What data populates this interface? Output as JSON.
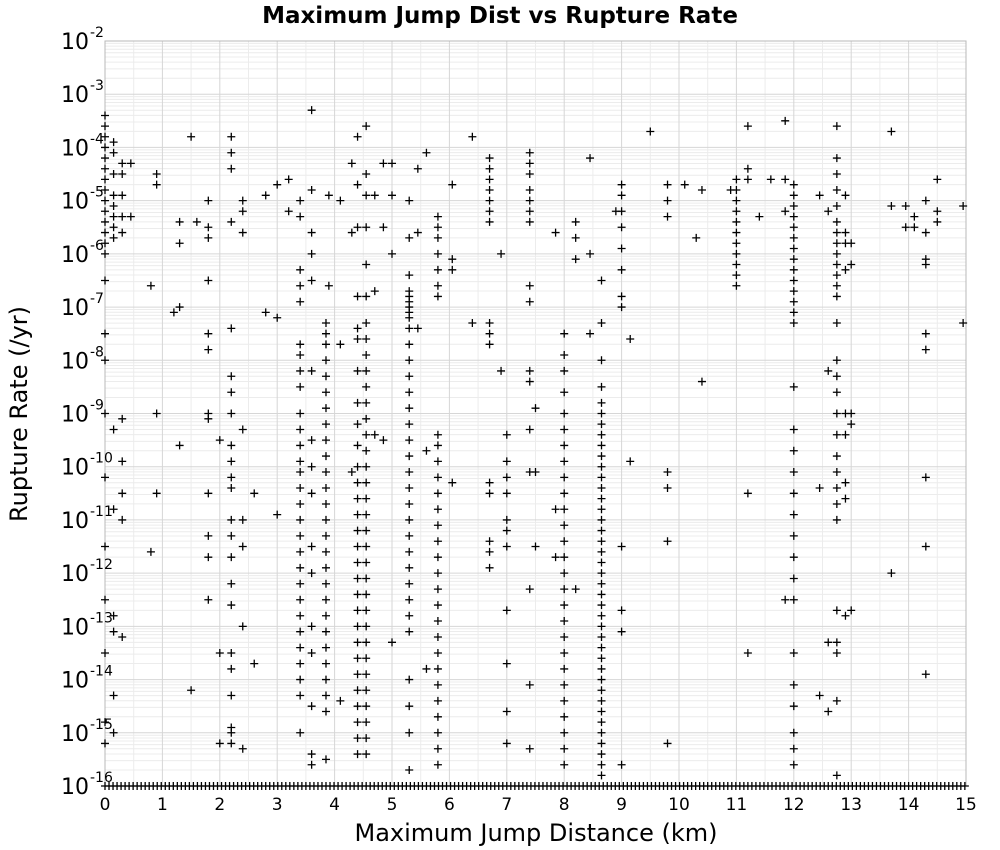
{
  "chart_data": {
    "type": "scatter",
    "title": "Maximum Jump Dist vs Rupture Rate",
    "xlabel": "Maximum Jump Distance (km)",
    "ylabel": "Rupture Rate (/yr)",
    "xlim": [
      0,
      15
    ],
    "ylim": [
      1e-16,
      0.01
    ],
    "yscale": "log",
    "grid": true,
    "marker": "plus",
    "marker_color": "#000000",
    "x_ticks": [
      "0",
      "1",
      "2",
      "3",
      "4",
      "5",
      "6",
      "7",
      "8",
      "9",
      "10",
      "11",
      "12",
      "13",
      "14",
      "15"
    ],
    "y_ticks": [
      {
        "base": "10",
        "exp": "-2"
      },
      {
        "base": "10",
        "exp": "-3"
      },
      {
        "base": "10",
        "exp": "-4"
      },
      {
        "base": "10",
        "exp": "-5"
      },
      {
        "base": "10",
        "exp": "-6"
      },
      {
        "base": "10",
        "exp": "-7"
      },
      {
        "base": "10",
        "exp": "-8"
      },
      {
        "base": "10",
        "exp": "-9"
      },
      {
        "base": "10",
        "exp": "-10"
      },
      {
        "base": "10",
        "exp": "-11"
      },
      {
        "base": "10",
        "exp": "-12"
      },
      {
        "base": "10",
        "exp": "-13"
      },
      {
        "base": "10",
        "exp": "-14"
      },
      {
        "base": "10",
        "exp": "-15"
      },
      {
        "base": "10",
        "exp": "-16"
      }
    ],
    "columns": [
      {
        "x": 0.0,
        "exps": [
          -3.4,
          -3.6,
          -3.8,
          -4.0,
          -4.2,
          -4.4,
          -4.6,
          -4.8,
          -5.0,
          -5.2,
          -5.4,
          -5.6,
          -5.8,
          -6.0,
          -6.5,
          -7.5,
          -8.0,
          -9.0,
          -10.2,
          -11.5,
          -12.5,
          -13.5,
          -14.8,
          -15.2
        ]
      },
      {
        "x": 0.15,
        "exps": [
          -3.9,
          -4.1,
          -4.5,
          -4.9,
          -5.1,
          -5.3,
          -5.5,
          -5.7,
          -9.3,
          -10.8,
          -12.8,
          -13.1,
          -14.3,
          -15.0
        ]
      },
      {
        "x": 0.3,
        "exps": [
          -4.3,
          -4.5,
          -4.9,
          -5.3,
          -5.6,
          -9.1,
          -9.9,
          -10.5,
          -11.0,
          -13.2
        ]
      },
      {
        "x": 0.9,
        "exps": [
          -4.5,
          -4.7,
          -9.0,
          -10.5
        ]
      },
      {
        "x": 1.3,
        "exps": [
          -5.4,
          -5.8,
          -7.0,
          -9.6
        ]
      },
      {
        "x": 1.5,
        "exps": [
          -3.8,
          -14.2
        ]
      },
      {
        "x": 1.8,
        "exps": [
          -5.0,
          -5.5,
          -5.7,
          -6.5,
          -7.5,
          -7.8,
          -9.0,
          -9.1,
          -10.5,
          -11.3,
          -11.7,
          -12.5
        ]
      },
      {
        "x": 2.2,
        "exps": [
          -3.8,
          -4.1,
          -4.4,
          -5.4,
          -7.4,
          -8.3,
          -8.6,
          -9.0,
          -9.6,
          -9.9,
          -10.2,
          -10.4,
          -11.0,
          -11.3,
          -11.7,
          -12.2,
          -12.6,
          -13.5,
          -13.8,
          -14.3,
          -14.9,
          -15.0,
          -15.2
        ]
      },
      {
        "x": 2.4,
        "exps": [
          -5.0,
          -5.2,
          -5.6,
          -9.3,
          -11.0,
          -11.5,
          -13.0,
          -15.3
        ]
      },
      {
        "x": 3.0,
        "exps": [
          -4.7,
          -7.2,
          -10.9
        ]
      },
      {
        "x": 3.4,
        "exps": [
          -5.0,
          -5.3,
          -6.3,
          -6.6,
          -6.9,
          -7.7,
          -7.9,
          -8.2,
          -8.5,
          -9.0,
          -9.3,
          -9.6,
          -9.9,
          -10.1,
          -10.4,
          -10.7,
          -11.0,
          -11.3,
          -11.6,
          -11.9,
          -12.2,
          -12.5,
          -12.8,
          -13.1,
          -13.4,
          -13.7,
          -14.0,
          -14.3,
          -15.0
        ]
      },
      {
        "x": 3.6,
        "exps": [
          -3.3,
          -4.8,
          -5.6,
          -6.0,
          -6.5,
          -8.2,
          -9.5,
          -10.0,
          -10.5,
          -11.5,
          -12.0,
          -13.0,
          -13.5,
          -14.5,
          -15.4,
          -15.6
        ]
      },
      {
        "x": 3.85,
        "exps": [
          -7.3,
          -7.5,
          -7.7,
          -8.0,
          -8.3,
          -8.6,
          -8.9,
          -9.2,
          -9.5,
          -9.8,
          -10.1,
          -10.4,
          -10.7,
          -11.0,
          -11.3,
          -11.6,
          -11.9,
          -12.2,
          -12.5,
          -12.8,
          -13.1,
          -13.4,
          -13.7,
          -14.0,
          -14.3,
          -14.6,
          -15.5
        ]
      },
      {
        "x": 4.4,
        "exps": [
          -3.8,
          -4.7,
          -5.5,
          -6.8,
          -7.4,
          -7.6,
          -8.2,
          -8.8,
          -9.2,
          -9.6,
          -10.0,
          -10.3,
          -10.6,
          -10.9,
          -11.2,
          -11.5,
          -11.8,
          -12.1,
          -12.4,
          -12.7,
          -13.0,
          -13.3,
          -13.6,
          -13.9,
          -14.2,
          -14.5,
          -14.8,
          -15.1,
          -15.4
        ]
      },
      {
        "x": 4.55,
        "exps": [
          -3.6,
          -4.5,
          -4.9,
          -5.5,
          -6.2,
          -6.8,
          -7.3,
          -7.6,
          -7.9,
          -8.2,
          -8.5,
          -8.8,
          -9.1,
          -9.4,
          -9.7,
          -10.0,
          -10.3,
          -10.6,
          -10.9,
          -11.2,
          -11.5,
          -11.8,
          -12.1,
          -12.4,
          -12.7,
          -13.0,
          -13.3,
          -13.6,
          -13.9,
          -14.2,
          -14.5,
          -14.8,
          -15.1,
          -15.4
        ]
      },
      {
        "x": 5.3,
        "exps": [
          -5.0,
          -5.7,
          -6.4,
          -6.7,
          -6.8,
          -6.9,
          -7.0,
          -7.1,
          -7.2,
          -7.4,
          -7.7,
          -8.0,
          -8.3,
          -8.6,
          -8.9,
          -9.2,
          -9.5,
          -9.8,
          -10.1,
          -10.4,
          -10.7,
          -11.0,
          -11.3,
          -11.6,
          -11.9,
          -12.2,
          -12.5,
          -12.8,
          -13.1,
          -14.0,
          -14.5,
          -15.0,
          -15.7
        ]
      },
      {
        "x": 5.8,
        "exps": [
          -5.3,
          -5.5,
          -5.7,
          -6.0,
          -6.3,
          -6.6,
          -6.8,
          -9.4,
          -9.6,
          -9.9,
          -10.2,
          -10.5,
          -10.8,
          -11.1,
          -11.4,
          -11.7,
          -12.0,
          -12.3,
          -12.6,
          -12.9,
          -13.2,
          -13.5,
          -13.8,
          -14.1,
          -14.4,
          -14.7,
          -15.0,
          -15.3,
          -15.6
        ]
      },
      {
        "x": 6.7,
        "exps": [
          -4.2,
          -4.4,
          -4.6,
          -4.8,
          -5.0,
          -5.2,
          -5.4,
          -7.3,
          -7.5,
          -7.7,
          -10.3,
          -10.5,
          -11.4,
          -11.6,
          -11.9
        ]
      },
      {
        "x": 7.0,
        "exps": [
          -9.4,
          -9.9,
          -10.2,
          -10.5,
          -11.0,
          -11.2,
          -11.5,
          -12.7,
          -13.7,
          -14.6,
          -15.2
        ]
      },
      {
        "x": 7.4,
        "exps": [
          -4.1,
          -4.3,
          -4.5,
          -4.8,
          -5.0,
          -5.2,
          -5.4,
          -6.6,
          -6.9,
          -8.2,
          -8.4,
          -9.3,
          -10.1,
          -12.3,
          -14.1,
          -15.3
        ]
      },
      {
        "x": 8.0,
        "exps": [
          -7.5,
          -7.9,
          -8.2,
          -8.6,
          -9.0,
          -9.3,
          -9.6,
          -9.9,
          -10.2,
          -10.5,
          -10.8,
          -11.1,
          -11.4,
          -11.7,
          -12.0,
          -12.3,
          -12.6,
          -12.9,
          -13.2,
          -13.5,
          -13.8,
          -14.1,
          -14.4,
          -14.7,
          -15.0,
          -15.3,
          -15.6
        ]
      },
      {
        "x": 8.65,
        "exps": [
          -6.5,
          -7.3,
          -8.0,
          -8.5,
          -8.8,
          -9.0,
          -9.2,
          -9.4,
          -9.6,
          -9.8,
          -10.0,
          -10.2,
          -10.4,
          -10.6,
          -10.8,
          -11.0,
          -11.2,
          -11.4,
          -11.6,
          -11.8,
          -12.0,
          -12.2,
          -12.4,
          -12.6,
          -12.8,
          -13.0,
          -13.2,
          -13.4,
          -13.6,
          -13.8,
          -14.0,
          -14.2,
          -14.4,
          -14.6,
          -14.8,
          -15.0,
          -15.2,
          -15.4,
          -15.6,
          -15.8
        ]
      },
      {
        "x": 9.0,
        "exps": [
          -4.7,
          -4.9,
          -5.2,
          -5.5,
          -5.9,
          -6.3,
          -6.8,
          -7.0,
          -11.5,
          -12.7,
          -13.1,
          -15.6
        ]
      },
      {
        "x": 9.8,
        "exps": [
          -4.7,
          -5.0,
          -5.3,
          -10.1,
          -10.4,
          -11.4,
          -15.2
        ]
      },
      {
        "x": 11.0,
        "exps": [
          -4.6,
          -4.8,
          -5.0,
          -5.2,
          -5.4,
          -5.6,
          -5.8,
          -6.0,
          -6.2,
          -6.4,
          -6.6
        ]
      },
      {
        "x": 11.2,
        "exps": [
          -3.6,
          -4.4,
          -4.6,
          -10.5,
          -13.5
        ]
      },
      {
        "x": 12.0,
        "exps": [
          -4.7,
          -4.9,
          -5.1,
          -5.3,
          -5.5,
          -5.7,
          -5.9,
          -6.1,
          -6.3,
          -6.5,
          -6.7,
          -6.9,
          -7.1,
          -7.3,
          -8.5,
          -9.3,
          -9.7,
          -10.1,
          -10.5,
          -10.9,
          -11.3,
          -11.7,
          -12.1,
          -12.5,
          -13.5,
          -14.1,
          -14.5,
          -15.0,
          -15.3,
          -15.6
        ]
      },
      {
        "x": 12.75,
        "exps": [
          -3.6,
          -4.2,
          -4.5,
          -4.8,
          -5.1,
          -5.4,
          -5.6,
          -5.8,
          -6.0,
          -6.2,
          -6.4,
          -6.6,
          -6.8,
          -7.3,
          -8.0,
          -8.3,
          -8.6,
          -9.0,
          -9.4,
          -9.8,
          -10.1,
          -10.4,
          -10.7,
          -11.0,
          -12.7,
          -13.3,
          -13.5,
          -14.4,
          -15.8
        ]
      },
      {
        "x": 12.9,
        "exps": [
          -4.9,
          -5.6,
          -5.8,
          -6.3,
          -9.0,
          -9.4,
          -10.3,
          -10.6,
          -12.8
        ]
      },
      {
        "x": 13.7,
        "exps": [
          -3.7,
          -5.1,
          -12.0
        ]
      },
      {
        "x": 14.3,
        "exps": [
          -5.0,
          -5.6,
          -6.1,
          -6.2,
          -7.5,
          -7.8,
          -10.2,
          -11.5,
          -13.9
        ]
      },
      {
        "x": 14.5,
        "exps": [
          -4.6,
          -5.2,
          -5.4
        ]
      },
      {
        "x": 14.95,
        "exps": [
          -5.1,
          -7.3
        ]
      }
    ],
    "scatter_extra": [
      {
        "x": 0.45,
        "exps": [
          -4.3,
          -5.3
        ]
      },
      {
        "x": 0.8,
        "exps": [
          -6.6,
          -11.6
        ]
      },
      {
        "x": 1.2,
        "exps": [
          -7.1
        ]
      },
      {
        "x": 1.6,
        "exps": [
          -5.4
        ]
      },
      {
        "x": 2.0,
        "exps": [
          -9.5,
          -13.5,
          -15.2
        ]
      },
      {
        "x": 2.6,
        "exps": [
          -10.5,
          -13.7
        ]
      },
      {
        "x": 2.8,
        "exps": [
          -4.9,
          -7.1
        ]
      },
      {
        "x": 3.2,
        "exps": [
          -4.6,
          -5.2
        ]
      },
      {
        "x": 3.9,
        "exps": [
          -4.9,
          -6.6
        ]
      },
      {
        "x": 4.1,
        "exps": [
          -5.0,
          -7.7,
          -14.4
        ]
      },
      {
        "x": 4.3,
        "exps": [
          -4.3,
          -5.6,
          -10.1
        ]
      },
      {
        "x": 4.7,
        "exps": [
          -4.9,
          -6.7,
          -9.4
        ]
      },
      {
        "x": 4.85,
        "exps": [
          -4.3,
          -5.5,
          -9.5
        ]
      },
      {
        "x": 5.0,
        "exps": [
          -4.3,
          -4.9,
          -6.0,
          -13.3
        ]
      },
      {
        "x": 5.45,
        "exps": [
          -4.4,
          -5.6,
          -7.4
        ]
      },
      {
        "x": 5.6,
        "exps": [
          -4.1,
          -9.7,
          -13.8
        ]
      },
      {
        "x": 6.05,
        "exps": [
          -4.7,
          -6.1,
          -6.3,
          -10.3
        ]
      },
      {
        "x": 6.4,
        "exps": [
          -3.8,
          -7.3
        ]
      },
      {
        "x": 6.9,
        "exps": [
          -6.0,
          -8.2
        ]
      },
      {
        "x": 7.5,
        "exps": [
          -8.9,
          -10.1,
          -11.5
        ]
      },
      {
        "x": 7.85,
        "exps": [
          -5.6,
          -10.8,
          -11.7
        ]
      },
      {
        "x": 8.2,
        "exps": [
          -5.4,
          -5.7,
          -6.1,
          -12.3
        ]
      },
      {
        "x": 8.45,
        "exps": [
          -4.2,
          -6.0,
          -7.5
        ]
      },
      {
        "x": 8.9,
        "exps": [
          -5.2
        ]
      },
      {
        "x": 9.15,
        "exps": [
          -7.6,
          -9.9
        ]
      },
      {
        "x": 9.5,
        "exps": [
          -3.7
        ]
      },
      {
        "x": 10.1,
        "exps": [
          -4.7
        ]
      },
      {
        "x": 10.4,
        "exps": [
          -4.8
        ]
      },
      {
        "x": 10.4,
        "exps": [
          -8.4
        ]
      },
      {
        "x": 10.3,
        "exps": [
          -5.7
        ]
      },
      {
        "x": 10.9,
        "exps": [
          -4.8
        ]
      },
      {
        "x": 11.4,
        "exps": [
          -5.3
        ]
      },
      {
        "x": 11.6,
        "exps": [
          -4.6
        ]
      },
      {
        "x": 11.85,
        "exps": [
          -3.5,
          -4.6,
          -5.2,
          -12.5
        ]
      },
      {
        "x": 12.45,
        "exps": [
          -4.9,
          -10.4,
          -14.3
        ]
      },
      {
        "x": 12.6,
        "exps": [
          -5.2,
          -8.2,
          -13.3,
          -14.6
        ]
      },
      {
        "x": 13.0,
        "exps": [
          -5.8,
          -6.2,
          -9.0,
          -9.2,
          -12.7
        ]
      },
      {
        "x": 13.95,
        "exps": [
          -5.1,
          -5.5
        ]
      },
      {
        "x": 14.1,
        "exps": [
          -5.3,
          -5.5
        ]
      }
    ],
    "floor_exp": -16
  }
}
